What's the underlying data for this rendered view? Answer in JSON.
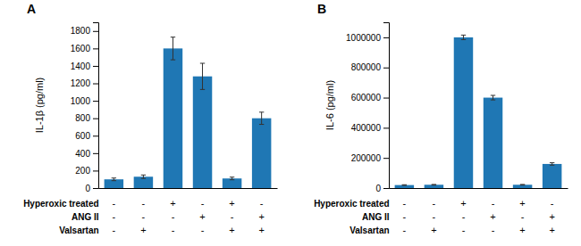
{
  "chart_data": [
    {
      "type": "bar",
      "title": "A",
      "ylabel": "IL-1β (pg/ml)",
      "categories": [
        null,
        null,
        null,
        null,
        null,
        null
      ],
      "values": [
        100,
        130,
        1600,
        1280,
        110,
        800
      ],
      "errors": [
        15,
        20,
        130,
        150,
        15,
        70
      ],
      "ylim": [
        0,
        1900
      ],
      "yticks": [
        0,
        200,
        400,
        600,
        800,
        1000,
        1200,
        1400,
        1600,
        1800
      ],
      "grid": false,
      "condition_table": [
        {
          "label": "Hyperoxic treated",
          "values": [
            "-",
            "-",
            "+",
            "-",
            "+",
            "-"
          ]
        },
        {
          "label": "ANG II",
          "values": [
            "-",
            "-",
            "-",
            "+",
            "-",
            "+"
          ]
        },
        {
          "label": "Valsartan",
          "values": [
            "-",
            "+",
            "-",
            "-",
            "+",
            "+"
          ]
        }
      ]
    },
    {
      "type": "bar",
      "title": "B",
      "ylabel": "IL-6 (pg/ml)",
      "categories": [
        null,
        null,
        null,
        null,
        null,
        null
      ],
      "values": [
        20000,
        22000,
        1000000,
        600000,
        22000,
        160000
      ],
      "errors": [
        2000,
        2000,
        15000,
        15000,
        2000,
        8000
      ],
      "ylim": [
        0,
        1100000
      ],
      "yticks": [
        0,
        200000,
        400000,
        600000,
        800000,
        1000000
      ],
      "grid": false,
      "condition_table": [
        {
          "label": "Hyperoxic treated",
          "values": [
            "-",
            "-",
            "+",
            "-",
            "+",
            "-"
          ]
        },
        {
          "label": "ANG II",
          "values": [
            "-",
            "-",
            "-",
            "+",
            "-",
            "+"
          ]
        },
        {
          "label": "Valsartan",
          "values": [
            "-",
            "+",
            "-",
            "-",
            "+",
            "+"
          ]
        }
      ]
    }
  ]
}
